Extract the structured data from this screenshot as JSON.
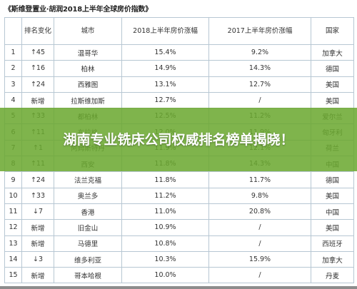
{
  "title": "《斯维登置业·胡润2018上半年全球房价指数》",
  "table": {
    "headers": [
      "",
      "排名变化",
      "城市",
      "2018上半年房价涨幅",
      "2017上半年房价涨幅",
      "国家"
    ],
    "rows": [
      [
        "1",
        "↑45",
        "温哥华",
        "15.4%",
        "9.2%",
        "加拿大"
      ],
      [
        "2",
        "↑16",
        "柏林",
        "14.9%",
        "14.3%",
        "德国"
      ],
      [
        "3",
        "↑24",
        "西雅图",
        "13.1%",
        "12.7%",
        "美国"
      ],
      [
        "4",
        "新增",
        "拉斯维加斯",
        "12.7%",
        "/",
        "美国"
      ],
      [
        "5",
        "↑33",
        "都柏林",
        "12.5%",
        "11.2%",
        "爱尔兰"
      ],
      [
        "6",
        "↑11",
        "布拉格",
        "12.0%",
        "11.9%",
        "匈牙利"
      ],
      [
        "7",
        "↑1",
        "阿姆斯特丹",
        "11.9%",
        "12.1%",
        "荷兰"
      ],
      [
        "8",
        "↑11",
        "西安",
        "11.8%",
        "14.3%",
        "中国"
      ],
      [
        "9",
        "↑24",
        "法兰克福",
        "11.8%",
        "11.7%",
        "德国"
      ],
      [
        "10",
        "↑33",
        "奥兰多",
        "11.2%",
        "9.8%",
        "美国"
      ],
      [
        "11",
        "↓7",
        "香港",
        "11.0%",
        "20.8%",
        "中国"
      ],
      [
        "12",
        "新增",
        "旧金山",
        "10.9%",
        "/",
        "美国"
      ],
      [
        "13",
        "新增",
        "马德里",
        "10.8%",
        "/",
        "西班牙"
      ],
      [
        "14",
        "↓3",
        "维多利亚",
        "10.3%",
        "15.9%",
        "加拿大"
      ],
      [
        "15",
        "新增",
        "哥本哈根",
        "10.0%",
        "/",
        "丹麦"
      ]
    ]
  },
  "banner": {
    "text": "湖南专业铣床公司权威排名榜单揭晓！",
    "color": "#6aa82e"
  }
}
